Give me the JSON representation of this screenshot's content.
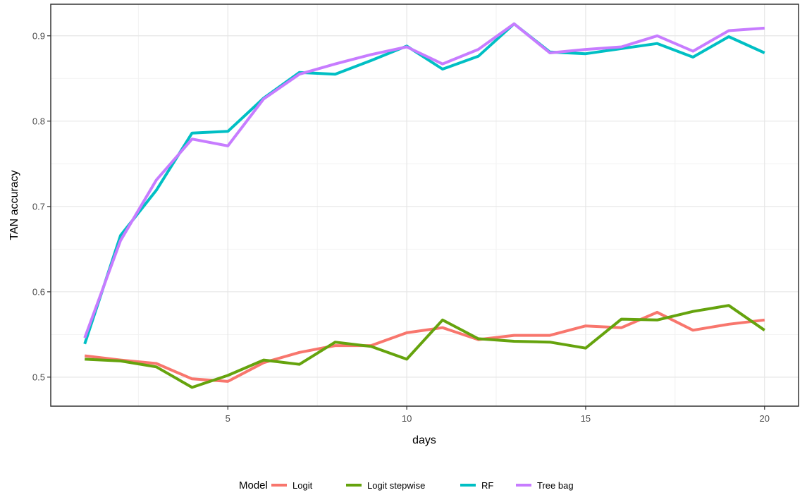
{
  "chart_data": {
    "type": "line",
    "xlabel": "days",
    "ylabel": "TAN accuracy",
    "xlim": [
      0.05,
      20.95
    ],
    "ylim": [
      0.466,
      0.937
    ],
    "x_ticks": [
      5,
      10,
      15,
      20
    ],
    "x_tick_labels": [
      "5",
      "10",
      "15",
      "20"
    ],
    "y_ticks": [
      0.5,
      0.6,
      0.7,
      0.8,
      0.9
    ],
    "y_tick_labels": [
      "0.5",
      "0.6",
      "0.7",
      "0.8",
      "0.9"
    ],
    "x_minor_ticks": [
      2.5,
      7.5,
      12.5,
      17.5
    ],
    "y_minor_ticks": [
      0.55,
      0.65,
      0.75,
      0.85
    ],
    "grid": true,
    "legend": {
      "title": "Model",
      "position": "bottom",
      "entries": [
        "Logit",
        "Logit stepwise",
        "RF",
        "Tree bag"
      ]
    },
    "x": [
      1,
      2,
      3,
      4,
      5,
      6,
      7,
      8,
      9,
      10,
      11,
      12,
      13,
      14,
      15,
      16,
      17,
      18,
      19,
      20
    ],
    "series": [
      {
        "name": "Logit",
        "color": "#f8766d",
        "values": [
          0.525,
          0.52,
          0.516,
          0.498,
          0.495,
          0.517,
          0.529,
          0.537,
          0.537,
          0.552,
          0.558,
          0.544,
          0.549,
          0.549,
          0.56,
          0.558,
          0.576,
          0.555,
          0.562,
          0.567
        ]
      },
      {
        "name": "Logit stepwise",
        "color": "#65a30d",
        "values": [
          0.521,
          0.519,
          0.512,
          0.488,
          0.502,
          0.52,
          0.515,
          0.541,
          0.536,
          0.521,
          0.567,
          0.545,
          0.542,
          0.541,
          0.534,
          0.568,
          0.567,
          0.577,
          0.584,
          0.555
        ]
      },
      {
        "name": "RF",
        "color": "#00bfc4",
        "values": [
          0.539,
          0.666,
          0.719,
          0.786,
          0.788,
          0.827,
          0.857,
          0.855,
          0.871,
          0.888,
          0.861,
          0.876,
          0.914,
          0.881,
          0.879,
          0.885,
          0.891,
          0.875,
          0.899,
          0.88
        ]
      },
      {
        "name": "Tree bag",
        "color": "#c77cff",
        "values": [
          0.546,
          0.66,
          0.731,
          0.779,
          0.771,
          0.826,
          0.855,
          0.867,
          0.878,
          0.887,
          0.867,
          0.884,
          0.914,
          0.88,
          0.884,
          0.887,
          0.9,
          0.882,
          0.906,
          0.909
        ]
      }
    ]
  }
}
